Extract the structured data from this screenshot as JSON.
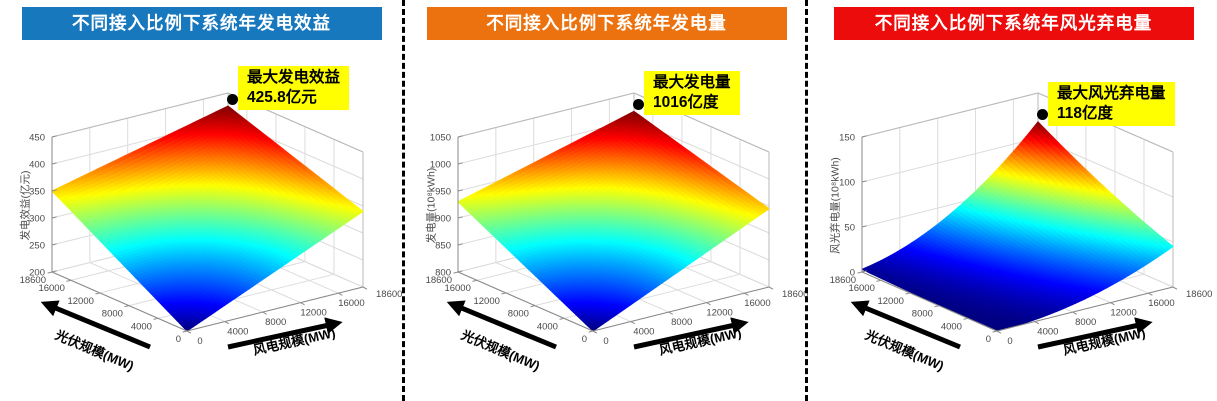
{
  "page": {
    "background": "#ffffff"
  },
  "panels": [
    {
      "header": {
        "label": "不同接入比例下系统年发电效益",
        "bg": "#1878BE",
        "text_color": "#ffffff"
      },
      "annotation": {
        "title": "最大发电效益",
        "value": "425.8亿元",
        "bg": "#FFFF00",
        "marker": "black-dot"
      },
      "chart_data": {
        "type": "surface",
        "title": "不同接入比例下系统年发电效益",
        "xlabel": "风电规模(MW)",
        "ylabel": "光伏规模(MW)",
        "zlabel": "发电效益(亿元)",
        "x_ticks": [
          0,
          4000,
          8000,
          12000,
          16000,
          18600
        ],
        "y_ticks": [
          18600,
          16000,
          12000,
          8000,
          4000,
          0
        ],
        "z_ticks": [
          200,
          250,
          300,
          350,
          400,
          450
        ],
        "xlim": [
          0,
          18600
        ],
        "ylim": [
          0,
          18600
        ],
        "zlim": [
          200,
          450
        ],
        "colormap": "jet",
        "grid": true,
        "surface_model": {
          "corner_origin": 200,
          "corner_wind_max": 340,
          "corner_pv_max": 350,
          "corner_both_max": 425.8,
          "center_sag": 30,
          "power": 1
        },
        "peak": {
          "wind_mw": 18600,
          "pv_mw": 18600,
          "value": 425.8
        }
      }
    },
    {
      "header": {
        "label": "不同接入比例下系统年发电量",
        "bg": "#EB720F",
        "text_color": "#ffffff"
      },
      "annotation": {
        "title": "最大发电量",
        "value": "1016亿度",
        "bg": "#FFFF00",
        "marker": "black-dot"
      },
      "chart_data": {
        "type": "surface",
        "title": "不同接入比例下系统年发电量",
        "xlabel": "风电规模(MW)",
        "ylabel": "光伏规模(MW)",
        "zlabel": "发电量(10⁸kWh)",
        "x_ticks": [
          0,
          4000,
          8000,
          12000,
          16000,
          18600
        ],
        "y_ticks": [
          18600,
          16000,
          12000,
          8000,
          4000,
          0
        ],
        "z_ticks": [
          800,
          850,
          900,
          950,
          1000,
          1050
        ],
        "xlim": [
          0,
          18600
        ],
        "ylim": [
          0,
          18600
        ],
        "zlim": [
          800,
          1050
        ],
        "colormap": "jet",
        "grid": true,
        "surface_model": {
          "corner_origin": 800,
          "corner_wind_max": 945,
          "corner_pv_max": 930,
          "corner_both_max": 1016,
          "center_sag": 28,
          "power": 1
        },
        "peak": {
          "wind_mw": 18600,
          "pv_mw": 18600,
          "value": 1016
        }
      }
    },
    {
      "header": {
        "label": "不同接入比例下系统年风光弃电量",
        "bg": "#ED0C0C",
        "text_color": "#ffffff"
      },
      "annotation": {
        "title": "最大风光弃电量",
        "value": "118亿度",
        "bg": "#FFFF00",
        "marker": "black-dot"
      },
      "chart_data": {
        "type": "surface",
        "title": "不同接入比例下系统年风光弃电量",
        "xlabel": "风电规模(MW)",
        "ylabel": "光伏规模(MW)",
        "zlabel": "风光弃电量(10⁸kWh)",
        "x_ticks": [
          0,
          4000,
          8000,
          12000,
          16000,
          18600
        ],
        "y_ticks": [
          18600,
          16000,
          12000,
          8000,
          4000,
          0
        ],
        "z_ticks": [
          0,
          50,
          100,
          150
        ],
        "xlim": [
          0,
          18600
        ],
        "ylim": [
          0,
          18600
        ],
        "zlim": [
          0,
          150
        ],
        "colormap": "jet",
        "grid": true,
        "surface_model": {
          "corner_origin": 0,
          "corner_wind_max": 45,
          "corner_pv_max": 3,
          "corner_both_max": 118,
          "center_sag": 0,
          "power": 2
        },
        "peak": {
          "wind_mw": 18600,
          "pv_mw": 18600,
          "value": 118
        }
      }
    }
  ]
}
